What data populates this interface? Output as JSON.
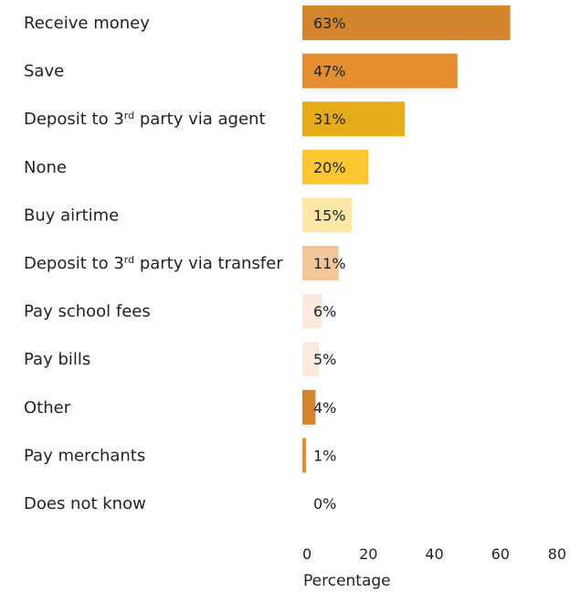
{
  "chart_data": {
    "type": "bar",
    "orientation": "horizontal",
    "categories": [
      "Receive money",
      "Save",
      "Deposit to 3rd party via agent",
      "None",
      "Buy airtime",
      "Deposit to 3rd party via transfer",
      "Pay school fees",
      "Pay bills",
      "Other",
      "Pay merchants",
      "Does not know"
    ],
    "values": [
      63,
      47,
      31,
      20,
      15,
      11,
      6,
      5,
      4,
      1,
      0
    ],
    "value_labels": [
      "63%",
      "47%",
      "31%",
      "20%",
      "15%",
      "11%",
      "6%",
      "5%",
      "4%",
      "1%",
      "0%"
    ],
    "bar_colors": [
      "#d4862c",
      "#e48e30",
      "#e6ab18",
      "#fbc632",
      "#fde6a6",
      "#f2c59a",
      "#fbe9dd",
      "#fbe9dd",
      "#d4862c",
      "#e48e30",
      "#ffffff"
    ],
    "xlabel": "Percentage",
    "xlim": [
      0,
      80
    ],
    "xticks": [
      0,
      20,
      40,
      60,
      80
    ],
    "grid": false,
    "legend": "none"
  }
}
